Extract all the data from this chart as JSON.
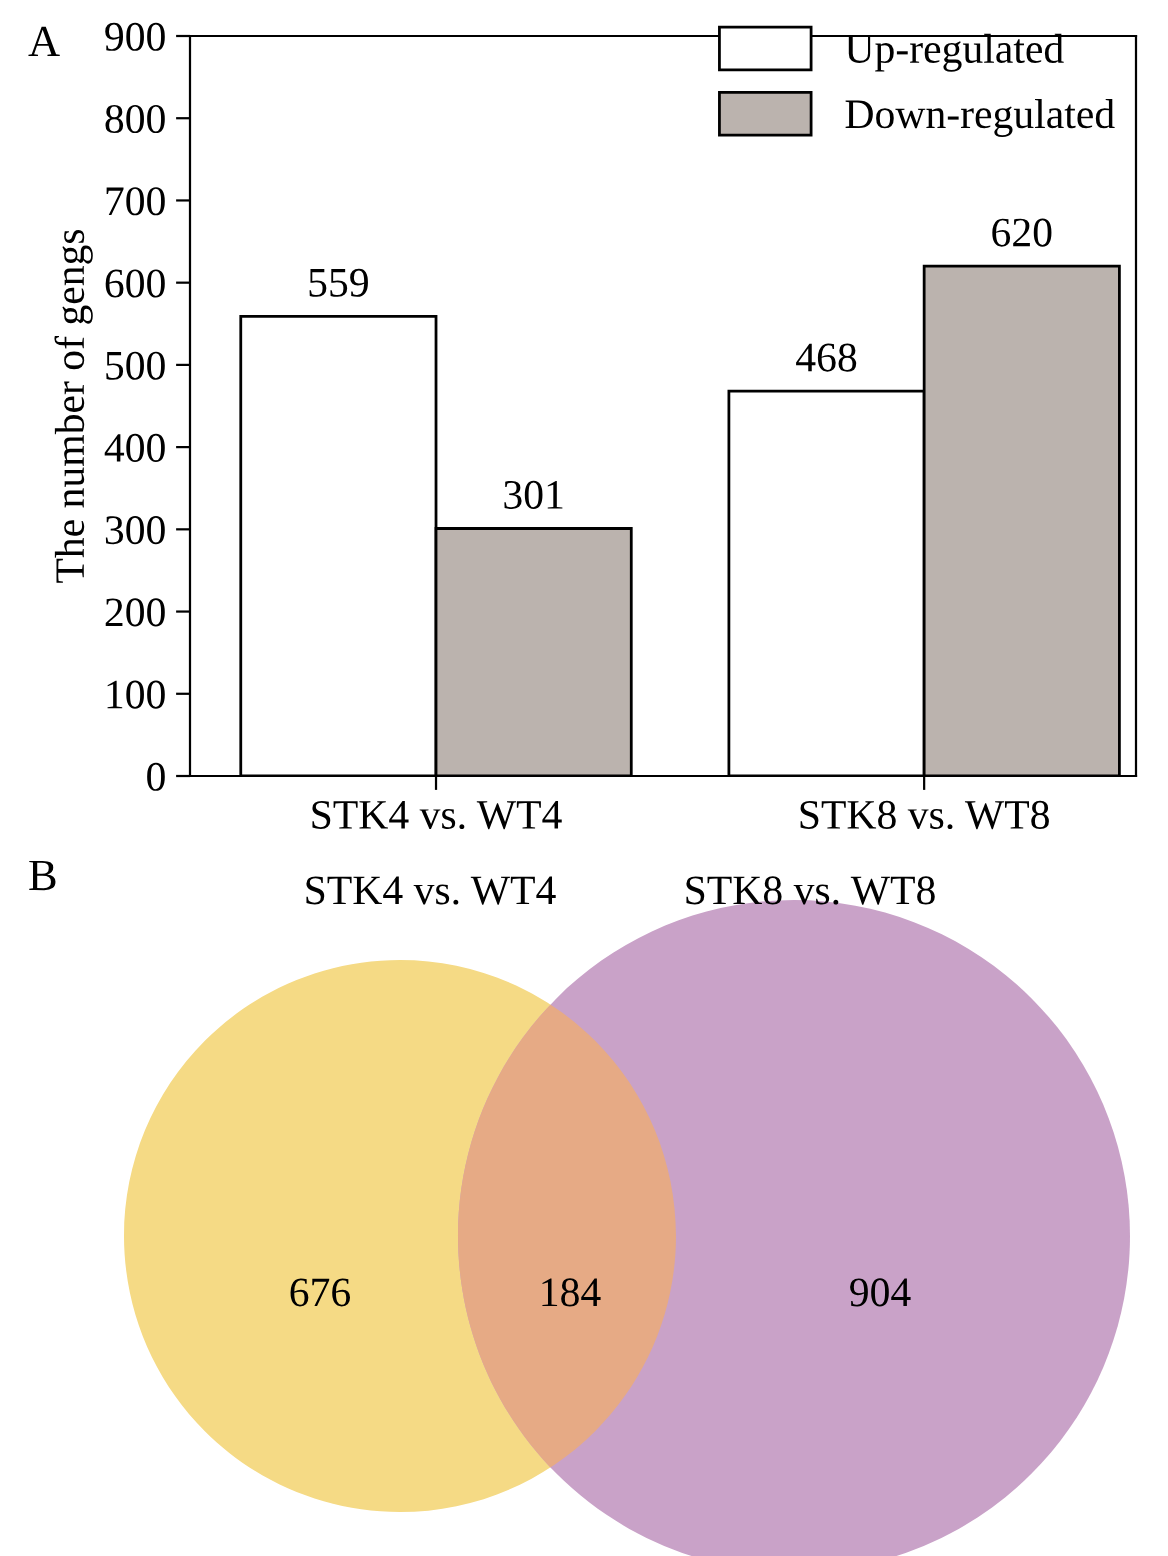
{
  "chart_data": [
    {
      "type": "bar",
      "annotations": [
        "A"
      ],
      "ylabel": "The number of gengs",
      "categories": [
        "STK4 vs. WT4",
        "STK8 vs. WT8"
      ],
      "series": [
        {
          "name": "Up-regulated",
          "color": "#ffffff",
          "values": [
            559,
            468
          ]
        },
        {
          "name": "Down-regulated",
          "color": "#bbb3ae",
          "values": [
            301,
            620
          ]
        }
      ],
      "ylim": [
        0,
        900
      ],
      "yticks": [
        0,
        100,
        200,
        300,
        400,
        500,
        600,
        700,
        800,
        900
      ],
      "data_labels": true,
      "legend": "top right",
      "grid": false
    },
    {
      "type": "other",
      "annotations": [
        "B"
      ],
      "categories": [
        "STK4 vs. WT4",
        null,
        "STK8 vs. WT8"
      ],
      "values": [
        676,
        184,
        904
      ],
      "data_labels": true,
      "colors": [
        "#f5da85",
        "#e6aa85",
        "#c9a2c8"
      ]
    }
  ]
}
